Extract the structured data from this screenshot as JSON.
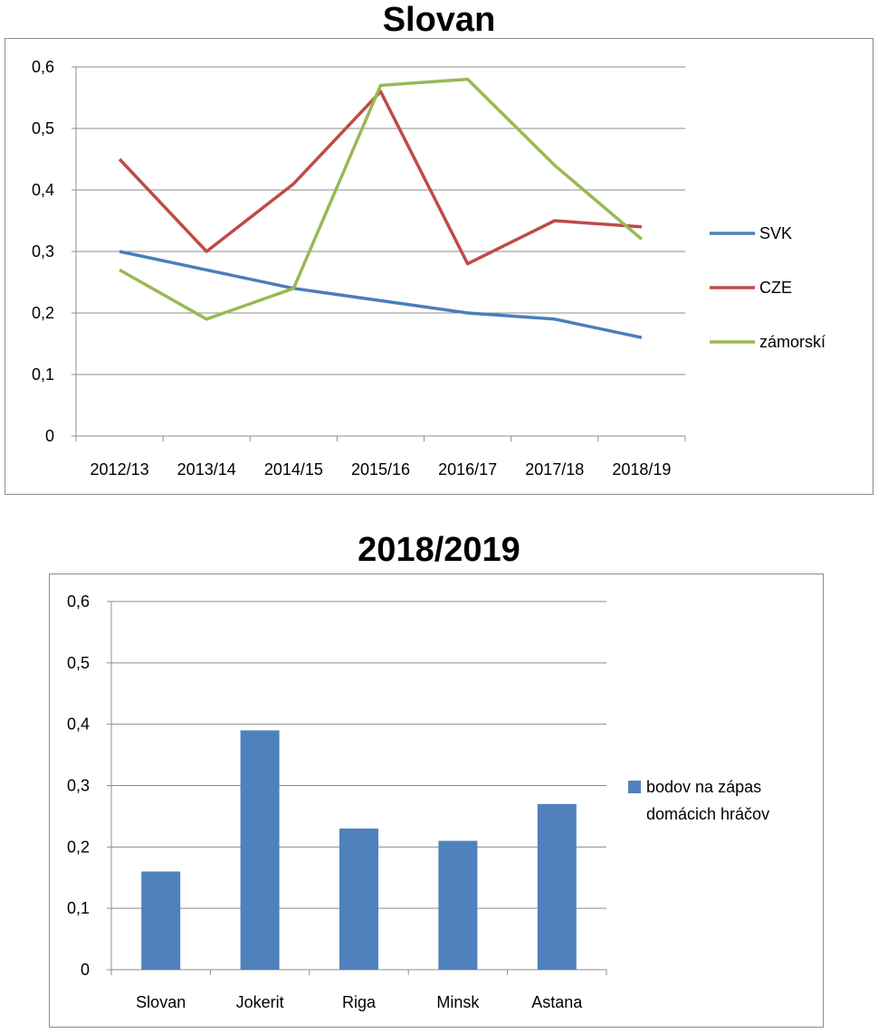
{
  "chart_data": [
    {
      "type": "line",
      "title": "Slovan",
      "categories": [
        "2012/13",
        "2013/14",
        "2014/15",
        "2015/16",
        "2016/17",
        "2017/18",
        "2018/19"
      ],
      "series": [
        {
          "name": "SVK",
          "color": "#4a7ebb",
          "values": [
            0.3,
            0.27,
            0.24,
            0.22,
            0.2,
            0.19,
            0.16
          ]
        },
        {
          "name": "CZE",
          "color": "#be4b48",
          "values": [
            0.45,
            0.3,
            0.41,
            0.56,
            0.28,
            0.35,
            0.34
          ]
        },
        {
          "name": "zámorskí",
          "color": "#98b954",
          "values": [
            0.27,
            0.19,
            0.24,
            0.57,
            0.58,
            0.44,
            0.32
          ]
        }
      ],
      "ylim": [
        0,
        0.6
      ],
      "yticks": [
        "0",
        "0,1",
        "0,2",
        "0,3",
        "0,4",
        "0,5",
        "0,6"
      ],
      "grid": true,
      "legend": "right"
    },
    {
      "type": "bar",
      "title": "2018/2019",
      "categories": [
        "Slovan",
        "Jokerit",
        "Riga",
        "Minsk",
        "Astana"
      ],
      "series": [
        {
          "name": "bodov na zápas domácich hráčov",
          "color": "#4f81bd",
          "values": [
            0.16,
            0.39,
            0.23,
            0.21,
            0.27
          ]
        }
      ],
      "legend_lines": [
        "bodov na zápas",
        "domácich hráčov"
      ],
      "ylim": [
        0,
        0.6
      ],
      "yticks": [
        "0",
        "0,1",
        "0,2",
        "0,3",
        "0,4",
        "0,5",
        "0,6"
      ],
      "grid": true,
      "legend": "right"
    }
  ]
}
